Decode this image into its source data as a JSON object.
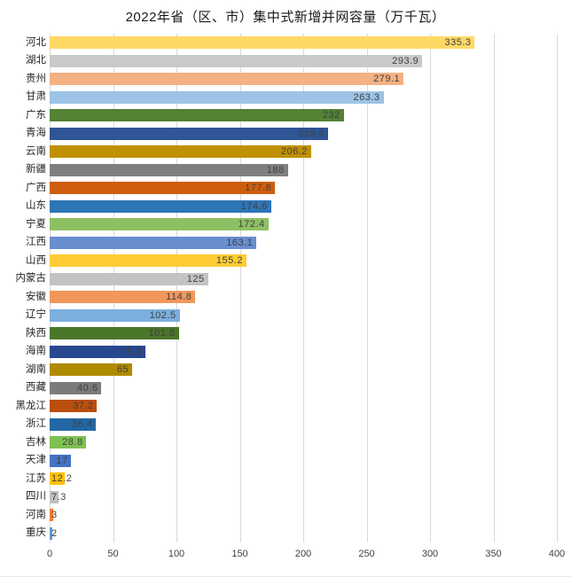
{
  "chart_title": "2022年省（区、市）集中式新增并网容量（万千瓦）",
  "chart_data": {
    "type": "bar",
    "orientation": "horizontal",
    "title": "2022年省（区、市）集中式新增并网容量（万千瓦）",
    "categories": [
      "河北",
      "湖北",
      "贵州",
      "甘肃",
      "广东",
      "青海",
      "云南",
      "新疆",
      "广西",
      "山东",
      "宁夏",
      "江西",
      "山西",
      "内蒙古",
      "安徽",
      "辽宁",
      "陕西",
      "海南",
      "湖南",
      "西藏",
      "黑龙江",
      "浙江",
      "吉林",
      "天津",
      "江苏",
      "四川",
      "河南",
      "重庆"
    ],
    "values": [
      335.3,
      293.9,
      279.1,
      263.3,
      232,
      219.6,
      206.2,
      188,
      177.8,
      174.6,
      172.4,
      163.1,
      155.2,
      125,
      114.8,
      102.5,
      101.8,
      75.3,
      65,
      40.6,
      37.2,
      36.4,
      28.8,
      17,
      12.2,
      7.3,
      3,
      2
    ],
    "display_values": [
      "335.3",
      "293.9",
      "279.1",
      "263.3",
      "232",
      "219.6",
      "206.2",
      "188",
      "177.8",
      "174.6",
      "172.4",
      "163.1",
      "155.2",
      "125",
      "114.8",
      "102.5",
      "101.8",
      "75.3",
      "65",
      "40.6",
      "37.2",
      "36.4",
      "28.8",
      "17",
      "12.2",
      "7.3",
      "3",
      "2"
    ],
    "bar_colors": [
      "#FFD966",
      "#C9C9C9",
      "#F4B183",
      "#9DC3E6",
      "#548235",
      "#2F5597",
      "#BF9000",
      "#7F7F7F",
      "#CE5E0D",
      "#2E75B6",
      "#8CC063",
      "#698ED0",
      "#FFCC33",
      "#C3C3C3",
      "#F1975A",
      "#7CAFDD",
      "#4A7629",
      "#27478F",
      "#AF8B00",
      "#7B7B7B",
      "#BA4E0E",
      "#2268A6",
      "#7EC152",
      "#4472C4",
      "#FFC000",
      "#BFBFBF",
      "#ED7D31",
      "#5B9BD5"
    ],
    "xlim": [
      0,
      400
    ],
    "x_tick_labels": [
      "0",
      "50",
      "100",
      "150",
      "200",
      "250",
      "300",
      "350",
      "400"
    ],
    "x_tick_values": [
      0,
      50,
      100,
      150,
      200,
      250,
      300,
      350,
      400
    ],
    "grid": true,
    "legend": "none",
    "value_label_position": "inside-end"
  },
  "styles": {
    "grid_color": "#d9d9d9",
    "value_label_color": "#404040",
    "category_label_color": "#262626",
    "background_color": "#ffffff"
  }
}
